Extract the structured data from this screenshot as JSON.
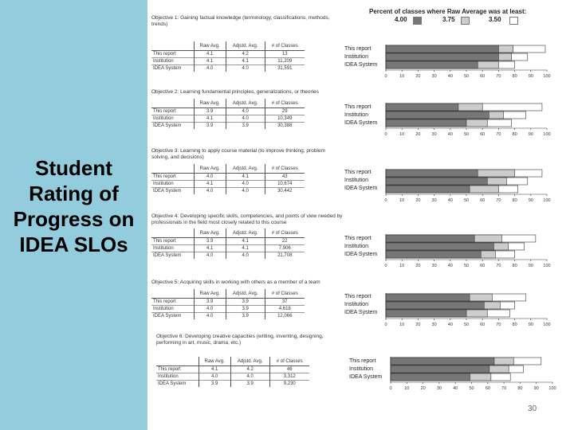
{
  "slide": {
    "title_lines": [
      "Student",
      "Rating of",
      "Progress on",
      "IDEA SLOs"
    ],
    "page_number": "30",
    "sidebar_color": "#93cddd"
  },
  "legend": {
    "title": "Percent of classes where Raw Average was at least:",
    "items": [
      {
        "label": "4.00",
        "color": "#777777"
      },
      {
        "label": "3.75",
        "color": "#cccccc"
      },
      {
        "label": "3.50",
        "color": "#ffffff"
      }
    ]
  },
  "table_headers": [
    "",
    "Raw Avg.",
    "Adjstd. Avg.",
    "# of Classes"
  ],
  "objectives": [
    {
      "title": "Objective 1: Gaining factual knowledge (terminology, classifications, methods, trends)",
      "rows": [
        [
          "This report",
          "4.1",
          "4.2",
          "13"
        ],
        [
          "Institution",
          "4.1",
          "4.1",
          "11,209"
        ],
        [
          "IDEA System",
          "4.0",
          "4.0",
          "31,591"
        ]
      ]
    },
    {
      "title": "Objective 2: Learning fundamental principles, generalizations, or theories",
      "rows": [
        [
          "This report",
          "3.9",
          "4.0",
          "29"
        ],
        [
          "Institution",
          "4.1",
          "4.0",
          "10,349"
        ],
        [
          "IDEA System",
          "3.9",
          "3.9",
          "30,388"
        ]
      ]
    },
    {
      "title": "Objective 3: Learning to apply course material (to improve thinking, problem solving, and decisions)",
      "rows": [
        [
          "This report",
          "4.0",
          "4.1",
          "43"
        ],
        [
          "Institution",
          "4.1",
          "4.0",
          "10,674"
        ],
        [
          "IDEA System",
          "4.0",
          "4.0",
          "30,442"
        ]
      ]
    },
    {
      "title": "Objective 4: Developing specific skills, competencies, and points of view needed by professionals in the field most closely related to this course",
      "rows": [
        [
          "This report",
          "3.9",
          "4.1",
          "22"
        ],
        [
          "Institution",
          "4.1",
          "4.1",
          "7,906"
        ],
        [
          "IDEA System",
          "4.0",
          "4.0",
          "21,708"
        ]
      ]
    },
    {
      "title": "Objective 5: Acquiring skills in working with others as a member of a team",
      "rows": [
        [
          "This report",
          "3.9",
          "3.9",
          "37"
        ],
        [
          "Institution",
          "4.0",
          "3.9",
          "4,618"
        ],
        [
          "IDEA System",
          "4.0",
          "3.9",
          "12,066"
        ]
      ]
    },
    {
      "title": "Objective 6: Developing creative capacities (writing, inventing, designing, performing in art, music, drama, etc.)",
      "rows": [
        [
          "This report",
          "4.1",
          "4.2",
          "46"
        ],
        [
          "Institution",
          "4.0",
          "4.0",
          "3,312"
        ],
        [
          "IDEA System",
          "3.9",
          "3.9",
          "9,230"
        ]
      ]
    }
  ],
  "chart_data": {
    "type": "bar",
    "orientation": "horizontal",
    "stacked": true,
    "title": "Percent of classes where Raw Average was at least:",
    "legend": [
      "4.00",
      "3.75",
      "3.50"
    ],
    "categories": [
      "This report",
      "Institution",
      "IDEA System"
    ],
    "xlim": [
      0,
      100
    ],
    "xticks": [
      0,
      10,
      20,
      30,
      40,
      50,
      60,
      70,
      80,
      90,
      100
    ],
    "charts": [
      {
        "objective": 1,
        "values": {
          "4.00": [
            70,
            70,
            57
          ],
          "3.75": [
            79,
            78,
            70
          ],
          "3.50": [
            99,
            88,
            80
          ]
        }
      },
      {
        "objective": 2,
        "values": {
          "4.00": [
            45,
            64,
            50
          ],
          "3.75": [
            60,
            73,
            63
          ],
          "3.50": [
            97,
            87,
            78
          ]
        }
      },
      {
        "objective": 3,
        "values": {
          "4.00": [
            57,
            63,
            52
          ],
          "3.75": [
            80,
            75,
            70
          ],
          "3.50": [
            97,
            88,
            82
          ]
        }
      },
      {
        "objective": 4,
        "values": {
          "4.00": [
            55,
            67,
            59
          ],
          "3.75": [
            72,
            76,
            68
          ],
          "3.50": [
            93,
            86,
            80
          ]
        }
      },
      {
        "objective": 5,
        "values": {
          "4.00": [
            52,
            61,
            50
          ],
          "3.75": [
            66,
            71,
            63
          ],
          "3.50": [
            87,
            80,
            77
          ]
        }
      },
      {
        "objective": 6,
        "values": {
          "4.00": [
            64,
            61,
            49
          ],
          "3.75": [
            76,
            73,
            62
          ],
          "3.50": [
            93,
            82,
            74
          ]
        }
      }
    ]
  }
}
